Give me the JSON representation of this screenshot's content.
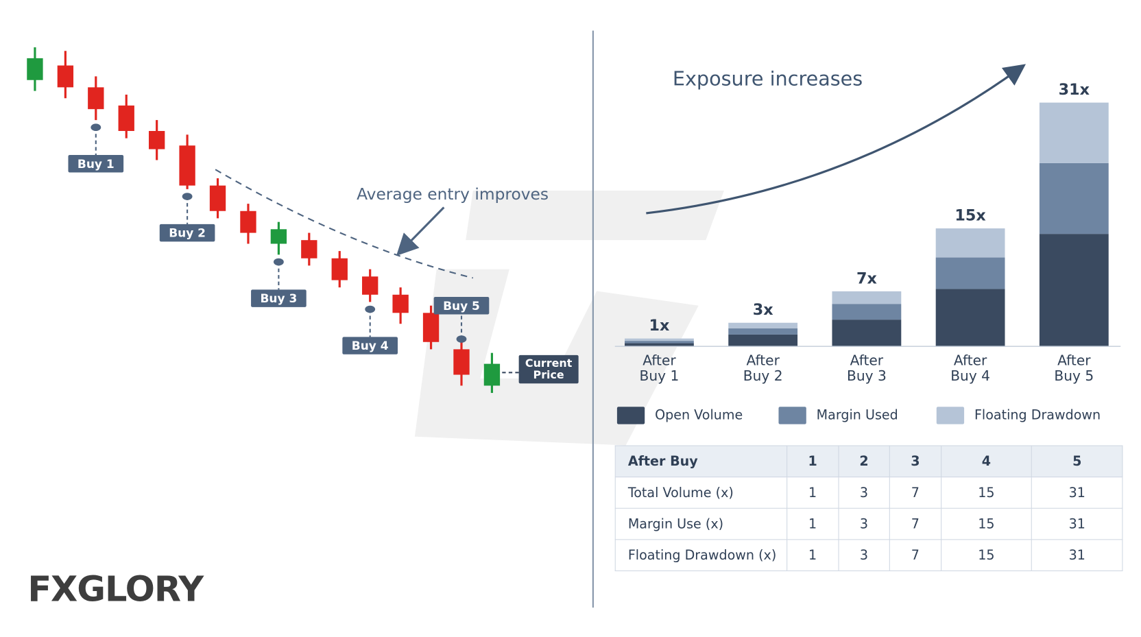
{
  "chart_data": [
    {
      "type": "candlestick",
      "open": [
        90,
        94,
        88,
        83,
        76,
        72,
        61,
        54,
        45,
        46,
        41,
        36,
        31,
        26,
        16,
        6
      ],
      "high": [
        99,
        98,
        91,
        86,
        79,
        75,
        63,
        56,
        51,
        48,
        43,
        38,
        33,
        28,
        18,
        15
      ],
      "low": [
        87,
        85,
        79,
        74,
        68,
        60,
        52,
        45,
        42,
        39,
        33,
        29,
        23,
        16,
        6,
        4
      ],
      "close": [
        96,
        88,
        82,
        76,
        71,
        61,
        54,
        48,
        49,
        41,
        35,
        31,
        26,
        18,
        9,
        12
      ],
      "up_color": "#1f9a3f",
      "down_color": "#e1251f",
      "ylim": [
        0,
        100
      ],
      "buy_labels": [
        "Buy 1",
        "Buy 2",
        "Buy 3",
        "Buy 4",
        "Buy 5"
      ],
      "annotation": "Average entry improves",
      "current_price_label": "Current Price"
    },
    {
      "type": "stacked_bar",
      "title": "Exposure increases",
      "categories": [
        "After Buy 1",
        "After Buy 2",
        "After Buy 3",
        "After Buy 4",
        "After Buy 5"
      ],
      "values": [
        1,
        3,
        7,
        15,
        31
      ],
      "value_labels": [
        "1x",
        "3x",
        "7x",
        "15x",
        "31x"
      ],
      "series": [
        {
          "name": "Open Volume",
          "color": "#3a4a60",
          "values": [
            0.4,
            1.5,
            3.4,
            7.3,
            14.3
          ]
        },
        {
          "name": "Margin Used",
          "color": "#6e85a2",
          "values": [
            0.3,
            0.8,
            2,
            4,
            9
          ]
        },
        {
          "name": "Floating Drawdown",
          "color": "#b5c4d7",
          "values": [
            0.3,
            0.7,
            1.6,
            3.7,
            7.7
          ]
        }
      ],
      "ylim": [
        0,
        31
      ]
    }
  ],
  "table": {
    "header": [
      "After Buy",
      "1",
      "2",
      "3",
      "4",
      "5"
    ],
    "rows": [
      [
        "Total Volume (x)",
        "1",
        "3",
        "7",
        "15",
        "31"
      ],
      [
        "Margin Use (x)",
        "1",
        "3",
        "7",
        "15",
        "31"
      ],
      [
        "Floating Drawdown (x)",
        "1",
        "3",
        "7",
        "15",
        "31"
      ]
    ]
  },
  "logo": "FXGLORY"
}
